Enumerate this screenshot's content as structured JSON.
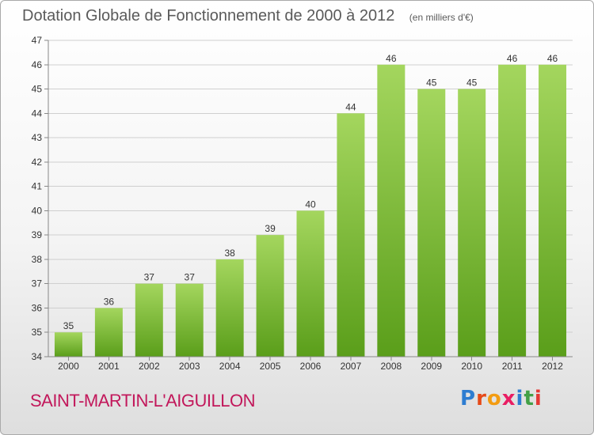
{
  "header": {
    "title": "Dotation Globale de Fonctionnement de 2000 à 2012",
    "unit": "(en milliers d'€)"
  },
  "footer": {
    "commune": "SAINT-MARTIN-L'AIGUILLON",
    "logo_text": "Proxiti",
    "logo_colors": [
      "#2e7dd1",
      "#e64a19",
      "#f39c12",
      "#e91e63",
      "#2e7dd1",
      "#43a047",
      "#e53935"
    ]
  },
  "colors": {
    "bar_top": "#a4d65e",
    "bar_bottom": "#5a9e1a",
    "grid": "#cfcfcf",
    "title": "#5a5a5a",
    "commune": "#c2185b"
  },
  "chart_data": {
    "type": "bar",
    "categories": [
      "2000",
      "2001",
      "2002",
      "2003",
      "2004",
      "2005",
      "2006",
      "2007",
      "2008",
      "2009",
      "2010",
      "2011",
      "2012"
    ],
    "values": [
      35,
      36,
      37,
      37,
      38,
      39,
      40,
      44,
      46,
      45,
      45,
      46,
      46
    ],
    "title": "Dotation Globale de Fonctionnement de 2000 à 2012",
    "unit": "(en milliers d'€)",
    "xlabel": "",
    "ylabel": "",
    "ylim": [
      34,
      47
    ],
    "yticks": [
      34,
      35,
      36,
      37,
      38,
      39,
      40,
      41,
      42,
      43,
      44,
      45,
      46,
      47
    ],
    "grid": true,
    "data_labels": true
  }
}
